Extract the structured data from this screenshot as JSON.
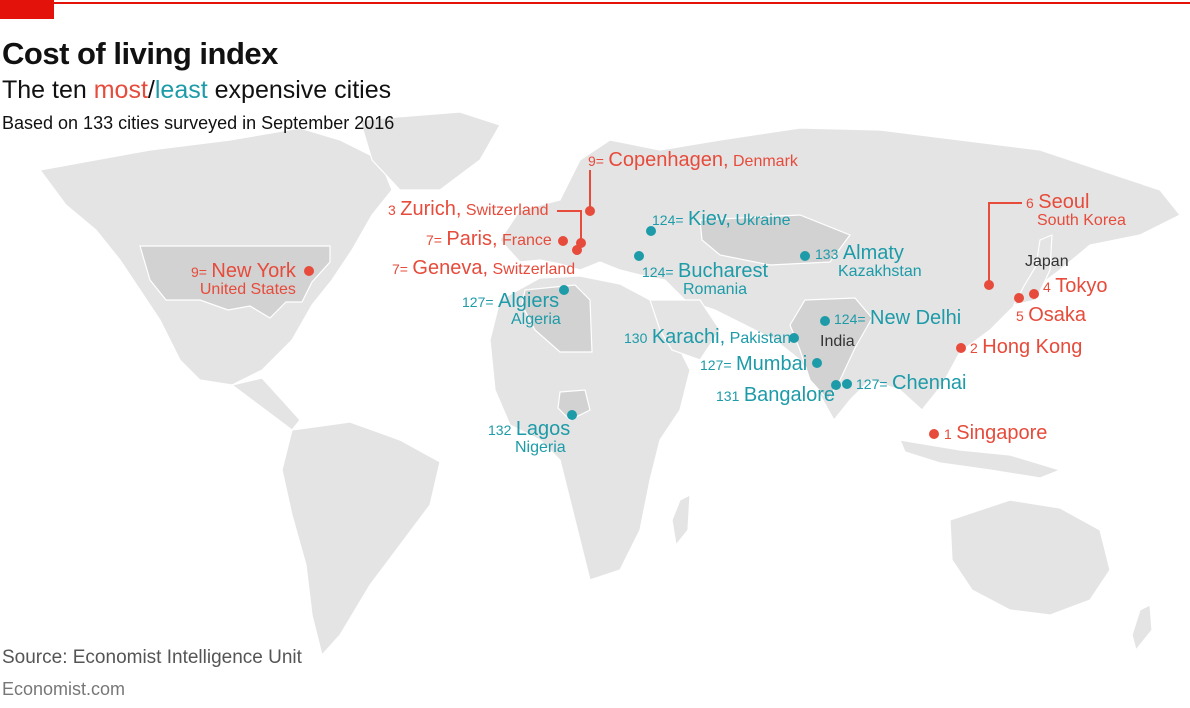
{
  "title": "Cost of living index",
  "subtitle": {
    "prefix": "The ten ",
    "most": "most",
    "slash": "/",
    "least": "least",
    "suffix": " expensive cities"
  },
  "note": "Based on 133 cities surveyed in September 2016",
  "source": "Source: Economist Intelligence Unit",
  "brand": "Economist.com",
  "colors": {
    "most": "#e64b3b",
    "least": "#1d9ba8",
    "land": "#e4e4e4",
    "highlight": "#d2d2d2",
    "accent": "#e3120b"
  },
  "cities": {
    "copenhagen": {
      "rank": "9=",
      "city": "Copenhagen,",
      "country": "Denmark"
    },
    "zurich": {
      "rank": "3",
      "city": "Zurich,",
      "country": "Switzerland"
    },
    "paris": {
      "rank": "7=",
      "city": "Paris,",
      "country": "France"
    },
    "geneva": {
      "rank": "7=",
      "city": "Geneva,",
      "country": "Switzerland"
    },
    "newyork": {
      "rank": "9=",
      "city": "New York",
      "country": "United States"
    },
    "seoul": {
      "rank": "6",
      "city": "Seoul",
      "country": "South Korea"
    },
    "japan": "Japan",
    "tokyo": {
      "rank": "4",
      "city": "Tokyo"
    },
    "osaka": {
      "rank": "5",
      "city": "Osaka"
    },
    "hongkong": {
      "rank": "2",
      "city": "Hong Kong"
    },
    "singapore": {
      "rank": "1",
      "city": "Singapore"
    },
    "kiev": {
      "rank": "124=",
      "city": "Kiev,",
      "country": "Ukraine"
    },
    "bucharest": {
      "rank": "124=",
      "city": "Bucharest",
      "country": "Romania"
    },
    "almaty": {
      "rank": "133",
      "city": "Almaty",
      "country": "Kazakhstan"
    },
    "algiers": {
      "rank": "127=",
      "city": "Algiers",
      "country": "Algeria"
    },
    "karachi": {
      "rank": "130",
      "city": "Karachi,",
      "country": "Pakistan"
    },
    "newdelhi": {
      "rank": "124=",
      "city": "New Delhi"
    },
    "india": "India",
    "mumbai": {
      "rank": "127=",
      "city": "Mumbai"
    },
    "chennai": {
      "rank": "127=",
      "city": "Chennai"
    },
    "bangalore": {
      "rank": "131",
      "city": "Bangalore"
    },
    "lagos": {
      "rank": "132",
      "city": "Lagos",
      "country": "Nigeria"
    }
  }
}
